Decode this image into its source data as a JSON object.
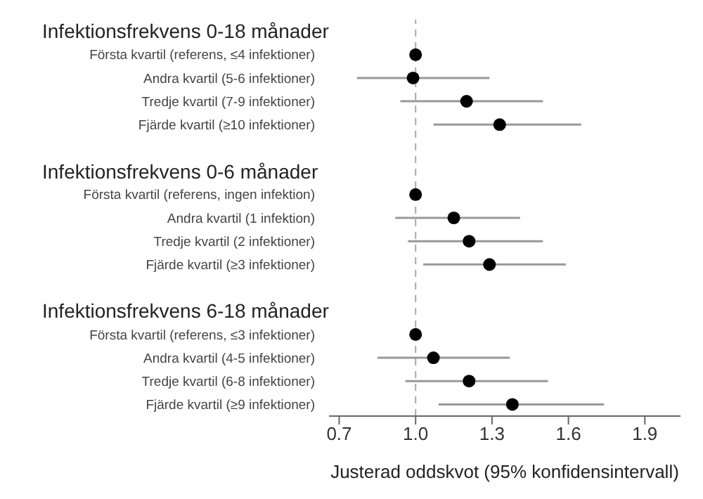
{
  "chart_data": {
    "type": "scatter",
    "orientation": "horizontal",
    "xlabel": "Justerad oddskvot (95% konfidensintervall)",
    "annotations": [
      "Infektionsfrekvens 0-18 månader",
      "Infektionsfrekvens 0-6 månader",
      "Infektionsfrekvens 6-18 månader"
    ],
    "categories": [
      null,
      "Första kvartil (referens, ≤4 infektioner)",
      "Andra kvartil (5-6 infektioner)",
      "Tredje kvartil (7-9 infektioner)",
      "Fjärde kvartil (≥10 infektioner)",
      null,
      null,
      "Första kvartil (referens, ingen infektion)",
      "Andra kvartil (1 infektion)",
      "Tredje kvartil (2 infektioner)",
      "Fjärde kvartil (≥3 infektioner)",
      null,
      null,
      "Första kvartil (referens, ≤3 infektioner)",
      "Andra kvartil (4-5 infektioner)",
      "Tredje kvartil (6-8 infektioner)",
      "Fjärde kvartil (≥9 infektioner)"
    ],
    "series": [
      {
        "color": "#000000",
        "values": [
          null,
          1.0,
          0.99,
          1.2,
          1.33,
          null,
          null,
          1.0,
          1.15,
          1.21,
          1.29,
          null,
          null,
          1.0,
          1.07,
          1.21,
          1.38
        ],
        "errors": [
          null,
          null,
          [
            0.77,
            1.29
          ],
          [
            0.94,
            1.5
          ],
          [
            1.07,
            1.65
          ],
          null,
          null,
          null,
          [
            0.92,
            1.41
          ],
          [
            0.97,
            1.5
          ],
          [
            1.03,
            1.59
          ],
          null,
          null,
          null,
          [
            0.85,
            1.37
          ],
          [
            0.96,
            1.52
          ],
          [
            1.09,
            1.74
          ]
        ]
      }
    ],
    "xlim": [
      0.66,
      2.04
    ],
    "xticks": [
      {
        "value": 0.7,
        "label": "0.7"
      },
      {
        "value": 1.0,
        "label": "1.0"
      },
      {
        "value": 1.3,
        "label": "1.3"
      },
      {
        "value": 1.6,
        "label": "1.6"
      },
      {
        "value": 1.9,
        "label": "1.9"
      }
    ],
    "ref_lines": [
      {
        "axis": "x",
        "value": 1.0,
        "color": "#aaaaaa",
        "line_style": "dashed"
      }
    ],
    "grid": false,
    "legend": false,
    "marker": "circle"
  }
}
